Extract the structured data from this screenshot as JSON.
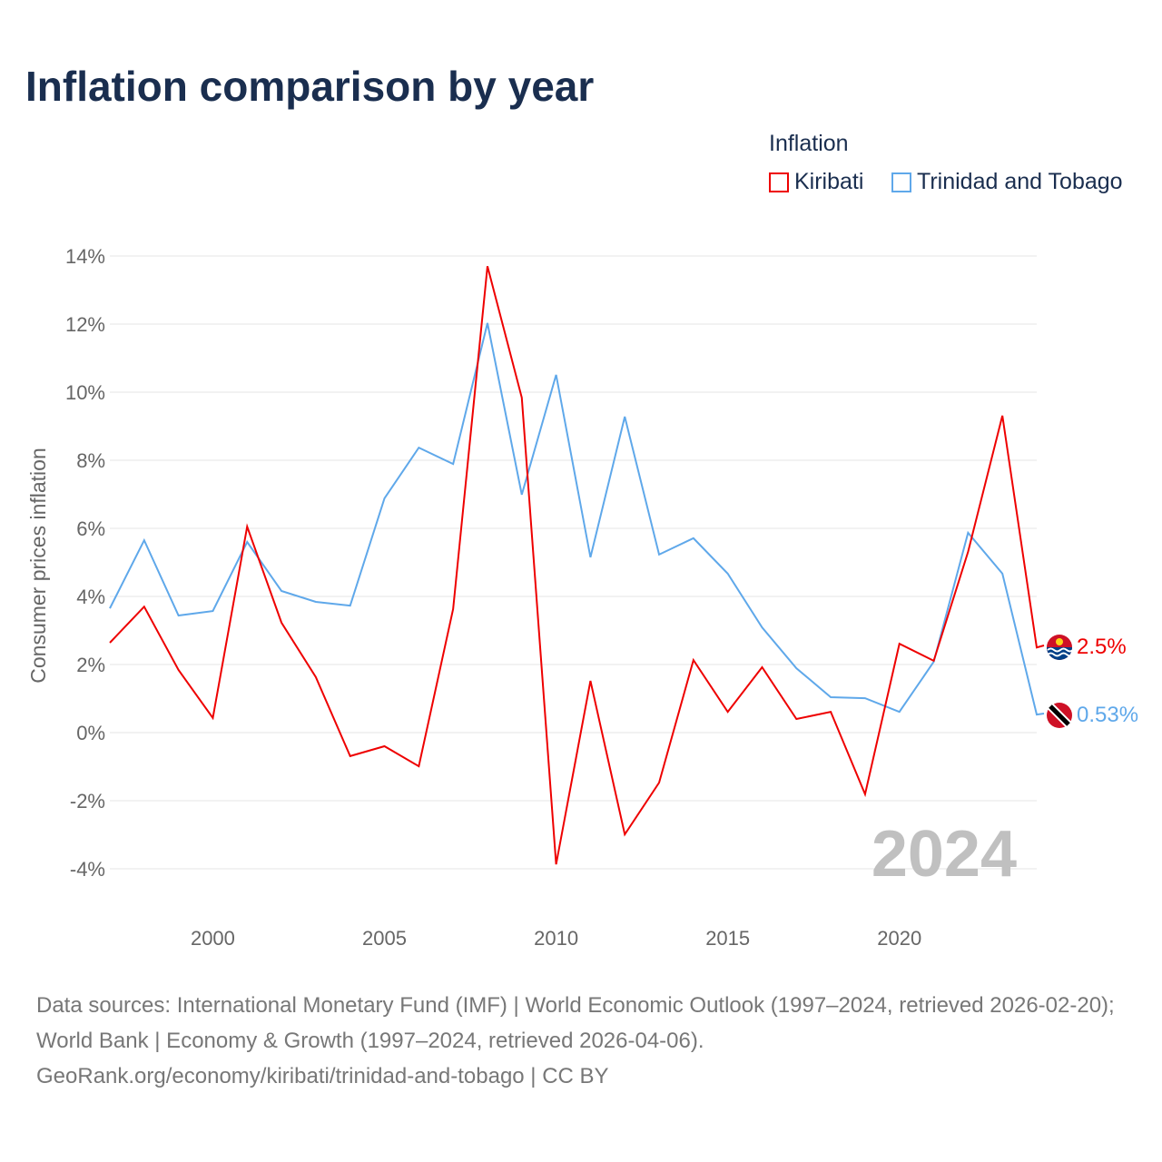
{
  "chart_data": {
    "type": "line",
    "title": "Inflation comparison by year",
    "ylabel": "Consumer prices inflation",
    "xlabel": "",
    "ylim": [
      -4,
      14
    ],
    "xlim": [
      1997,
      2024
    ],
    "yticks": [
      -4,
      -2,
      0,
      2,
      4,
      6,
      8,
      10,
      12,
      14
    ],
    "ytick_labels": [
      "-4%",
      "-2%",
      "0%",
      "2%",
      "4%",
      "6%",
      "8%",
      "10%",
      "12%",
      "14%"
    ],
    "xticks": [
      2000,
      2005,
      2010,
      2015,
      2020
    ],
    "xtick_labels": [
      "2000",
      "2005",
      "2010",
      "2015",
      "2020"
    ],
    "grid": true,
    "legend_title": "Inflation",
    "legend_position": "top-right",
    "year_watermark": "2024",
    "x": [
      1997,
      1998,
      1999,
      2000,
      2001,
      2002,
      2003,
      2004,
      2005,
      2006,
      2007,
      2008,
      2009,
      2010,
      2011,
      2012,
      2013,
      2014,
      2015,
      2016,
      2017,
      2018,
      2019,
      2020,
      2021,
      2022,
      2023,
      2024
    ],
    "series": [
      {
        "name": "Kiribati",
        "color": "#ee0000",
        "end_label": "2.5%",
        "values": [
          2.64,
          3.7,
          1.84,
          0.43,
          6.05,
          3.23,
          1.63,
          -0.69,
          -0.4,
          -0.99,
          3.63,
          13.7,
          9.84,
          -3.87,
          1.52,
          -2.99,
          -1.47,
          2.13,
          0.61,
          1.92,
          0.4,
          0.61,
          -1.81,
          2.61,
          2.11,
          5.31,
          9.31,
          2.5
        ]
      },
      {
        "name": "Trinidad and Tobago",
        "color": "#5fa8ea",
        "end_label": "0.53%",
        "values": [
          3.65,
          5.65,
          3.44,
          3.57,
          5.6,
          4.16,
          3.84,
          3.73,
          6.88,
          8.37,
          7.89,
          12.03,
          6.99,
          10.51,
          5.15,
          9.28,
          5.23,
          5.71,
          4.67,
          3.09,
          1.89,
          1.04,
          1.01,
          0.61,
          2.08,
          5.87,
          4.67,
          0.53
        ]
      }
    ]
  },
  "footer": {
    "line1": "Data sources: International Monetary Fund (IMF) | World Economic Outlook (1997–2024, retrieved 2026-02-20); World Bank | Economy & Growth (1997–2024, retrieved 2026-04-06).",
    "line2": "GeoRank.org/economy/kiribati/trinidad-and-tobago | CC BY"
  }
}
